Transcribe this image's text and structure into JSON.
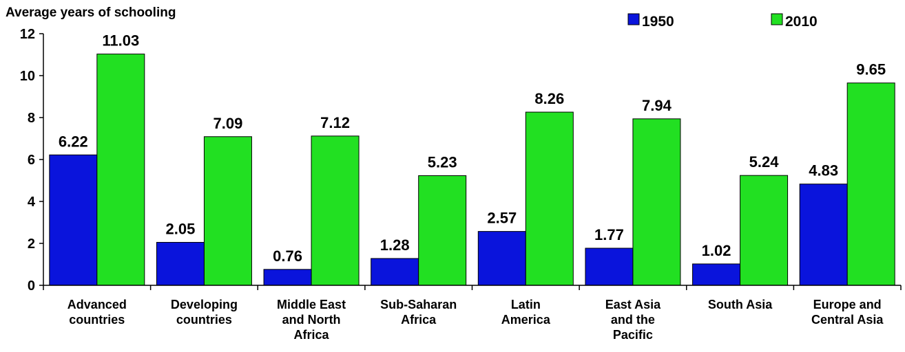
{
  "chart_data": {
    "type": "bar",
    "ylabel": "Average years of schooling",
    "ylim": [
      0,
      12
    ],
    "yticks": [
      0,
      2,
      4,
      6,
      8,
      10,
      12
    ],
    "grid": false,
    "legend_position": "top-right",
    "categories": [
      [
        "Advanced",
        "countries"
      ],
      [
        "Developing",
        "countries"
      ],
      [
        "Middle East",
        "and North",
        "Africa"
      ],
      [
        "Sub-Saharan",
        "Africa"
      ],
      [
        "Latin",
        "America"
      ],
      [
        "East Asia",
        "and the",
        "Pacific"
      ],
      [
        "South Asia"
      ],
      [
        "Europe and",
        "Central Asia"
      ]
    ],
    "series": [
      {
        "name": "1950",
        "color": "#0a14dc",
        "values": [
          6.22,
          2.05,
          0.76,
          1.28,
          2.57,
          1.77,
          1.02,
          4.83
        ]
      },
      {
        "name": "2010",
        "color": "#22e022",
        "values": [
          11.03,
          7.09,
          7.12,
          5.23,
          8.26,
          7.94,
          5.24,
          9.65
        ]
      }
    ],
    "data_labels": [
      [
        "6.22",
        "2.05",
        "0.76",
        "1.28",
        "2.57",
        "1.77",
        "1.02",
        "4.83"
      ],
      [
        "11.03",
        "7.09",
        "7.12",
        "5.23",
        "8.26",
        "7.94",
        "5.24",
        "9.65"
      ]
    ]
  }
}
